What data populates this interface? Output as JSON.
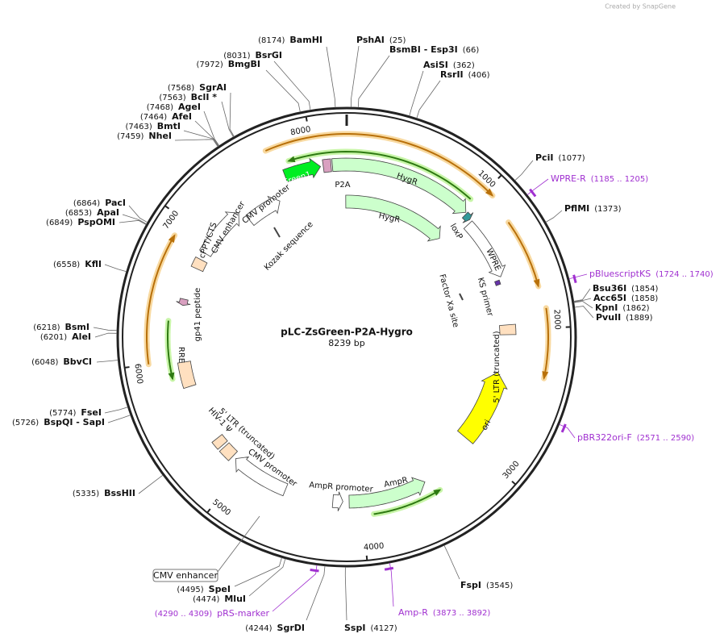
{
  "header": {
    "credit": "Created by SnapGene"
  },
  "map": {
    "title": "pLC-ZsGreen-P2A-Hygro",
    "length": 8239,
    "length_label": "8239 bp",
    "ticks": [
      1000,
      2000,
      3000,
      4000,
      5000,
      6000,
      7000,
      8000
    ],
    "enzymes": [
      {
        "name": "BamHI",
        "position": 8174,
        "position_label": "(8174)"
      },
      {
        "name": "BsrGI",
        "position": 8031,
        "position_label": "(8031)"
      },
      {
        "name": "BmgBI",
        "position": 7972,
        "position_label": "(7972)"
      },
      {
        "name": "SgrAI",
        "position": 7568,
        "position_label": "(7568)"
      },
      {
        "name": "BclI *",
        "position": 7563,
        "position_label": "(7563)"
      },
      {
        "name": "AgeI",
        "position": 7468,
        "position_label": "(7468)"
      },
      {
        "name": "AfeI",
        "position": 7464,
        "position_label": "(7464)"
      },
      {
        "name": "BmtI",
        "position": 7463,
        "position_label": "(7463)"
      },
      {
        "name": "NheI",
        "position": 7459,
        "position_label": "(7459)"
      },
      {
        "name": "PacI",
        "position": 6864,
        "position_label": "(6864)"
      },
      {
        "name": "ApaI",
        "position": 6853,
        "position_label": "(6853)"
      },
      {
        "name": "PspOMI",
        "position": 6849,
        "position_label": "(6849)"
      },
      {
        "name": "KflI",
        "position": 6558,
        "position_label": "(6558)"
      },
      {
        "name": "BsmI",
        "position": 6218,
        "position_label": "(6218)"
      },
      {
        "name": "AleI",
        "position": 6201,
        "position_label": "(6201)"
      },
      {
        "name": "BbvCI",
        "position": 6048,
        "position_label": "(6048)"
      },
      {
        "name": "FseI",
        "position": 5774,
        "position_label": "(5774)"
      },
      {
        "name": "BspQI  - SapI",
        "position": 5726,
        "position_label": "(5726)"
      },
      {
        "name": "BssHII",
        "position": 5335,
        "position_label": "(5335)"
      },
      {
        "name": "SpeI",
        "position": 4495,
        "position_label": "(4495)"
      },
      {
        "name": "MluI",
        "position": 4474,
        "position_label": "(4474)"
      },
      {
        "name": "SgrDI",
        "position": 4244,
        "position_label": "(4244)"
      },
      {
        "name": "SspI",
        "position": 4127,
        "position_label": "(4127)"
      },
      {
        "name": "FspI",
        "position": 3545,
        "position_label": "(3545)"
      },
      {
        "name": "PshAI",
        "position": 25,
        "position_label": "(25)"
      },
      {
        "name": "BsmBI  - Esp3I",
        "position": 66,
        "position_label": "(66)"
      },
      {
        "name": "AsiSI",
        "position": 362,
        "position_label": "(362)"
      },
      {
        "name": "RsrII",
        "position": 406,
        "position_label": "(406)"
      },
      {
        "name": "PciI",
        "position": 1077,
        "position_label": "(1077)"
      },
      {
        "name": "PflMI",
        "position": 1373,
        "position_label": "(1373)"
      },
      {
        "name": "Bsu36I",
        "position": 1854,
        "position_label": "(1854)"
      },
      {
        "name": "Acc65I",
        "position": 1858,
        "position_label": "(1858)"
      },
      {
        "name": "KpnI",
        "position": 1862,
        "position_label": "(1862)"
      },
      {
        "name": "PvuII",
        "position": 1889,
        "position_label": "(1889)"
      }
    ],
    "primers": [
      {
        "name": "WPRE-R",
        "start": 1185,
        "end": 1205,
        "range_label": "(1185 .. 1205)"
      },
      {
        "name": "pBluescriptKS",
        "start": 1724,
        "end": 1740,
        "range_label": "(1724 .. 1740)"
      },
      {
        "name": "pBR322ori-F",
        "start": 2571,
        "end": 2590,
        "range_label": "(2571 .. 2590)"
      },
      {
        "name": "Amp-R",
        "start": 3873,
        "end": 3892,
        "range_label": "(3873 .. 3892)"
      },
      {
        "name": "pRS-marker",
        "start": 4290,
        "end": 4309,
        "range_label": "(4290 .. 4309)"
      }
    ],
    "features": [
      {
        "name": "ZsGreen1"
      },
      {
        "name": "P2A"
      },
      {
        "name": "HygR"
      },
      {
        "name": "loxP"
      },
      {
        "name": "HygR"
      },
      {
        "name": "WPRE"
      },
      {
        "name": "KS primer"
      },
      {
        "name": "Factor Xa site"
      },
      {
        "name": "5' LTR (truncated)"
      },
      {
        "name": "ori"
      },
      {
        "name": "AmpR"
      },
      {
        "name": "AmpR promoter"
      },
      {
        "name": "CMV promoter"
      },
      {
        "name": "5' LTR (truncated)"
      },
      {
        "name": "HIV-1 Ψ"
      },
      {
        "name": "RRE"
      },
      {
        "name": "gp41 peptide"
      },
      {
        "name": "cPPT/CTS"
      },
      {
        "name": "CMV enhancer"
      },
      {
        "name": "CMV promoter"
      },
      {
        "name": "Kozak sequence"
      },
      {
        "name": "CMV enhancer"
      }
    ]
  }
}
